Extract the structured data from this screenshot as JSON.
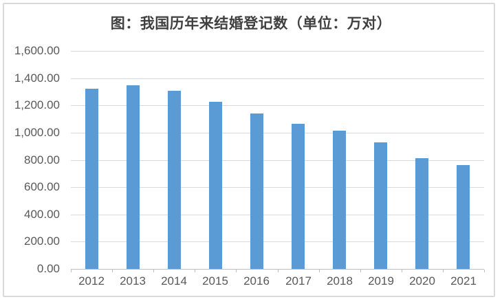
{
  "colors": {
    "bar": "#5b9bd5",
    "gridline": "#d9d9d9",
    "axis_line": "#bfbfbf",
    "tick_label": "#595959",
    "title": "#404040",
    "frame_border": "#d9d9d9",
    "background": "#ffffff"
  },
  "chart_data": {
    "type": "bar",
    "title": "图：我国历年来结婚登记数（单位：万对）",
    "categories": [
      "2012",
      "2013",
      "2014",
      "2015",
      "2016",
      "2017",
      "2018",
      "2019",
      "2020",
      "2021"
    ],
    "values": [
      1323.6,
      1346.9,
      1306.7,
      1224.7,
      1142.8,
      1063.1,
      1013.9,
      927.3,
      813.1,
      764.3
    ],
    "series_name": "结婚登记数",
    "xlabel": "",
    "ylabel": "",
    "ylim": [
      0,
      1600
    ],
    "ytick_step": 200,
    "ytick_labels": [
      "0.00",
      "200.00",
      "400.00",
      "600.00",
      "800.00",
      "1,000.00",
      "1,200.00",
      "1,400.00",
      "1,600.00"
    ],
    "grid": true,
    "legend_position": "none",
    "bar_color": "#5b9bd5"
  }
}
